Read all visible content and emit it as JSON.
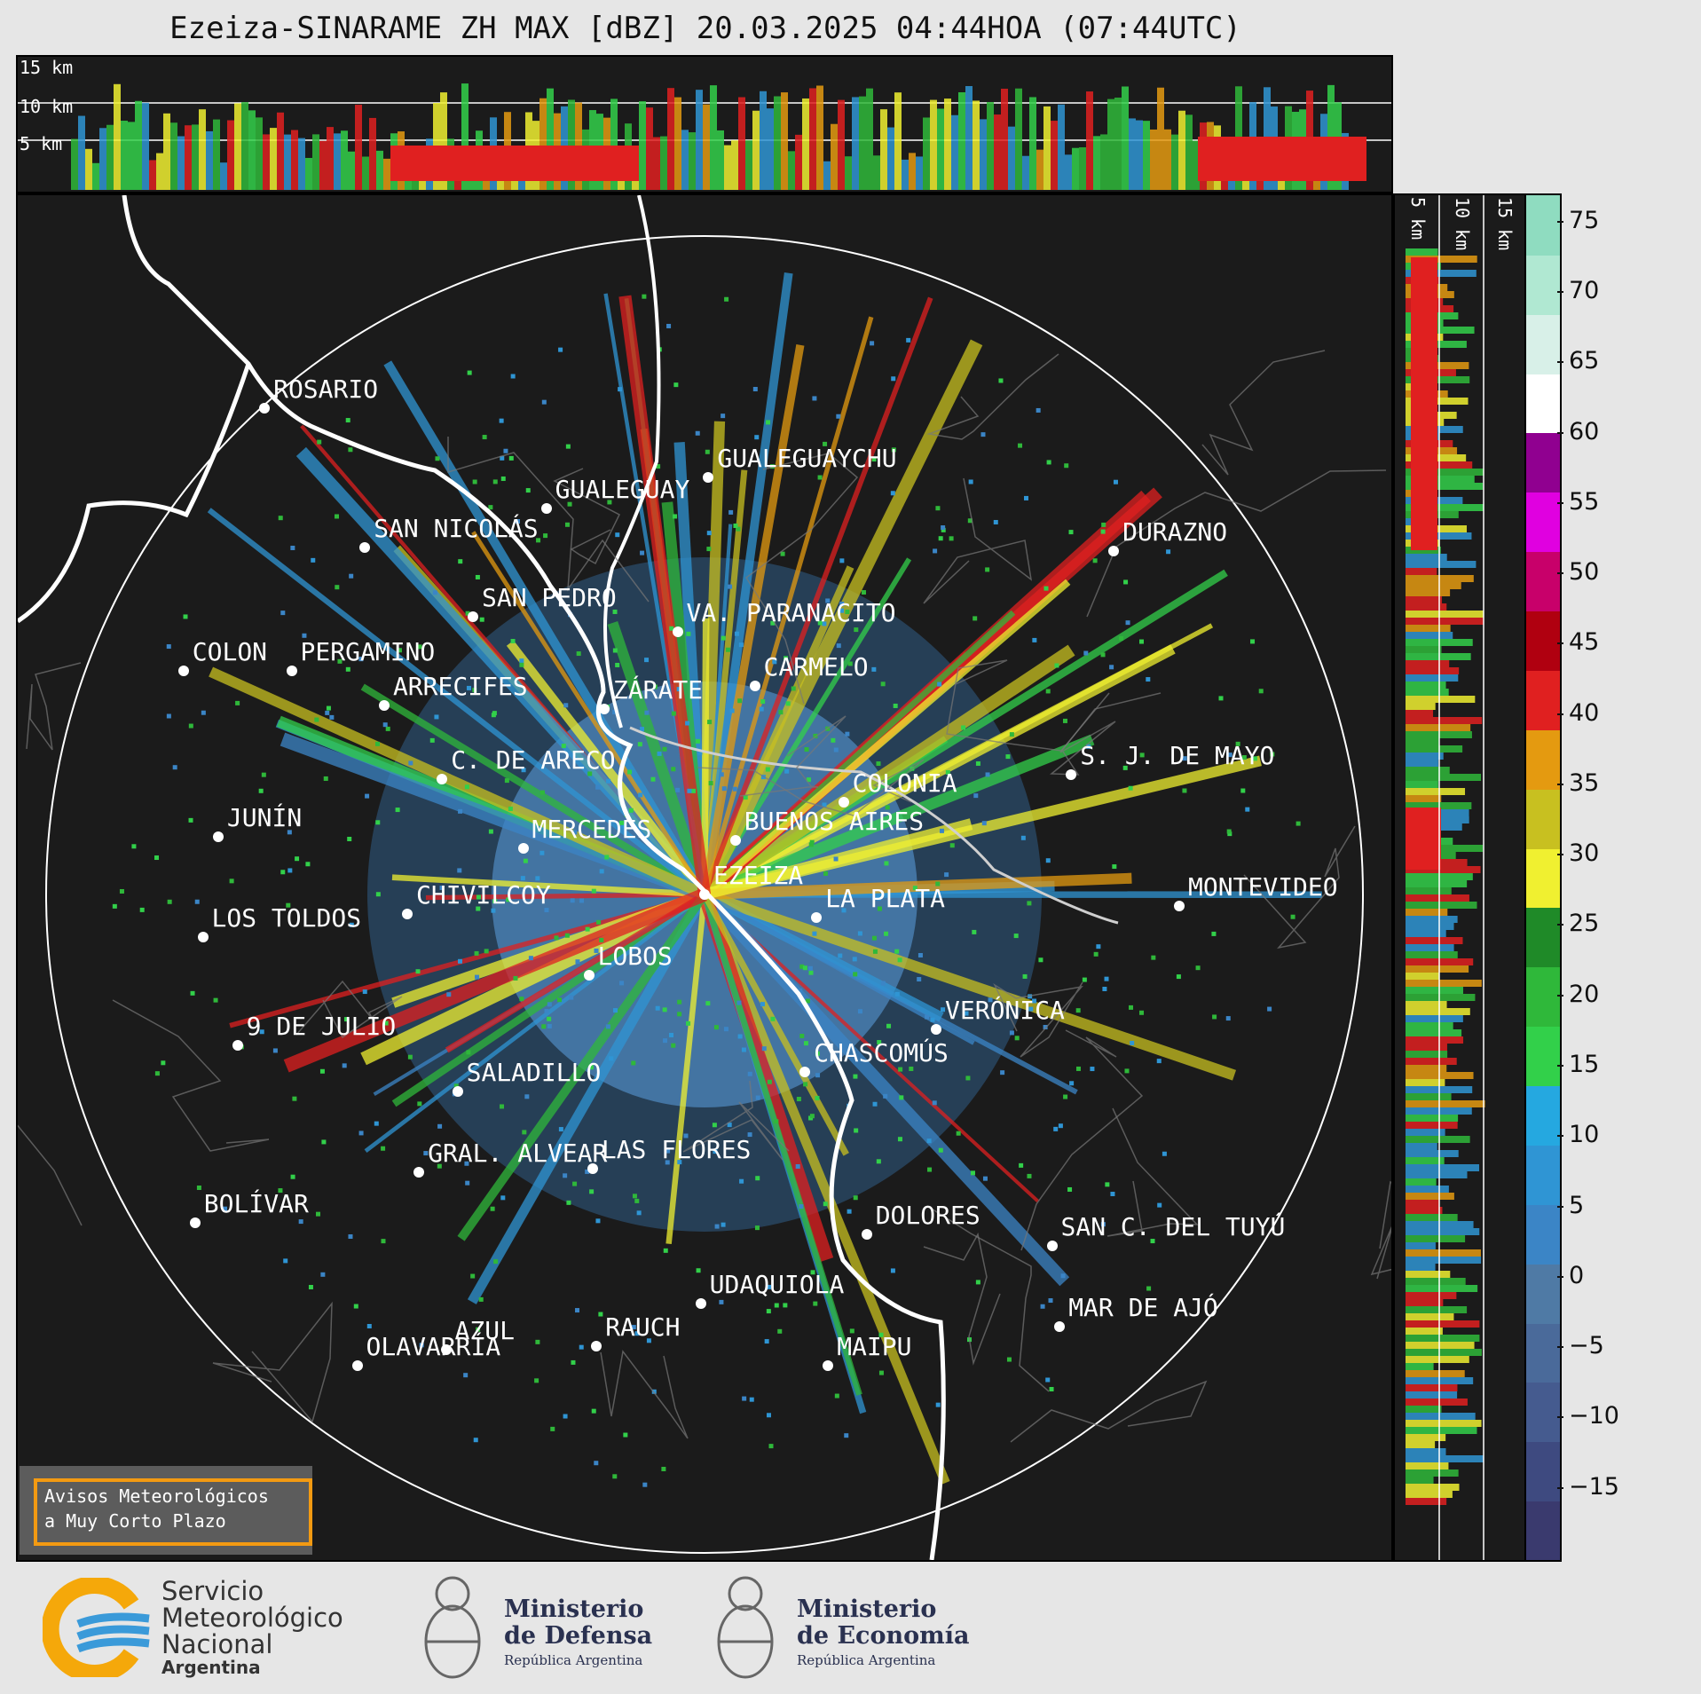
{
  "title": "Ezeiza-SINARAME ZH MAX [dBZ] 20.03.2025 04:44HOA (07:44UTC)",
  "top_panel": {
    "heights": [
      "15 km",
      "10 km",
      "5 km"
    ]
  },
  "side_panel": {
    "heights": [
      "5 km",
      "10 km",
      "15 km"
    ]
  },
  "cities": [
    {
      "name": "ROSARIO",
      "x": -5.7,
      "y": -6.3,
      "label": "right"
    },
    {
      "name": "GUALEGUAYCHU",
      "x": 0.05,
      "y": -5.4,
      "label": "right"
    },
    {
      "name": "GUALEGUAY",
      "x": -2.05,
      "y": -5.0,
      "label": "right"
    },
    {
      "name": "SAN NICOLÁS",
      "x": -4.4,
      "y": -4.5,
      "label": "right"
    },
    {
      "name": "DURAZNO",
      "x": 5.3,
      "y": -4.45,
      "label": "right"
    },
    {
      "name": "SAN PEDRO",
      "x": -3.0,
      "y": -3.6,
      "label": "right"
    },
    {
      "name": "VA. PARANACITO",
      "x": -0.35,
      "y": -3.4,
      "label": "right"
    },
    {
      "name": "COLON",
      "x": -6.75,
      "y": -2.9,
      "label": "right"
    },
    {
      "name": "PERGAMINO",
      "x": -5.35,
      "y": -2.9,
      "label": "right"
    },
    {
      "name": "CARMELO",
      "x": 0.65,
      "y": -2.7,
      "label": "right"
    },
    {
      "name": "ARRECIFES",
      "x": -4.15,
      "y": -2.45,
      "label": "right"
    },
    {
      "name": "ZÁRATE",
      "x": -1.3,
      "y": -2.4,
      "label": "right"
    },
    {
      "name": "S. J. DE MAYO",
      "x": 4.75,
      "y": -1.55,
      "label": "right"
    },
    {
      "name": "C. DE ARECO",
      "x": -3.4,
      "y": -1.5,
      "label": "right"
    },
    {
      "name": "COLONIA",
      "x": 1.8,
      "y": -1.2,
      "label": "right"
    },
    {
      "name": "JUNÍN",
      "x": -6.3,
      "y": -0.75,
      "label": "right"
    },
    {
      "name": "BUENOS AIRES",
      "x": 0.4,
      "y": -0.7,
      "label": "right"
    },
    {
      "name": "MERCEDES",
      "x": -2.35,
      "y": -0.6,
      "label": "right"
    },
    {
      "name": "EZEIZA",
      "x": 0.0,
      "y": 0.0,
      "label": "right"
    },
    {
      "name": "MONTEVIDEO",
      "x": 6.15,
      "y": 0.15,
      "label": "right"
    },
    {
      "name": "LA PLATA",
      "x": 1.45,
      "y": 0.3,
      "label": "right"
    },
    {
      "name": "CHIVILCOY",
      "x": -3.85,
      "y": 0.25,
      "label": "right"
    },
    {
      "name": "LOS TOLDOS",
      "x": -6.5,
      "y": 0.55,
      "label": "right"
    },
    {
      "name": "LOBOS",
      "x": -1.5,
      "y": 1.05,
      "label": "right"
    },
    {
      "name": "VERÓNICA",
      "x": 3.0,
      "y": 1.75,
      "label": "right"
    },
    {
      "name": "9 DE JULIO",
      "x": -6.05,
      "y": 1.95,
      "label": "right"
    },
    {
      "name": "CHASCOMÚS",
      "x": 1.3,
      "y": 2.3,
      "label": "right"
    },
    {
      "name": "SALADILLO",
      "x": -3.2,
      "y": 2.55,
      "label": "right"
    },
    {
      "name": "GRAL. ALVEAR",
      "x": -3.7,
      "y": 3.6,
      "label": "right"
    },
    {
      "name": "LAS FLORES",
      "x": -1.45,
      "y": 3.55,
      "label": "right"
    },
    {
      "name": "BOLÍVAR",
      "x": -6.6,
      "y": 4.25,
      "label": "right"
    },
    {
      "name": "DOLORES",
      "x": 2.1,
      "y": 4.4,
      "label": "right"
    },
    {
      "name": "SAN C. DEL TUYÚ",
      "x": 4.5,
      "y": 4.55,
      "label": "right"
    },
    {
      "name": "UDAQUIOLA",
      "x": -0.05,
      "y": 5.3,
      "label": "right"
    },
    {
      "name": "MAR DE AJÓ",
      "x": 4.6,
      "y": 5.6,
      "label": "right"
    },
    {
      "name": "AZUL",
      "x": -3.35,
      "y": 5.9,
      "label": "right"
    },
    {
      "name": "RAUCH",
      "x": -1.4,
      "y": 5.85,
      "label": "right"
    },
    {
      "name": "OLAVARRÍA",
      "x": -4.5,
      "y": 6.1,
      "label": "right"
    },
    {
      "name": "MAIPU",
      "x": 1.6,
      "y": 6.1,
      "label": "right"
    }
  ],
  "colorbar": {
    "ticks": [
      "75",
      "70",
      "65",
      "60",
      "55",
      "50",
      "45",
      "40",
      "35",
      "30",
      "25",
      "20",
      "15",
      "10",
      "5",
      "0",
      "−5",
      "−10",
      "−15"
    ],
    "colors": [
      "#3a3a6e",
      "#3e4a80",
      "#455b8f",
      "#4a6a9a",
      "#4f7aa5",
      "#3b85c6",
      "#2f95d4",
      "#25a8e0",
      "#32d04a",
      "#2fb83a",
      "#1f8a28",
      "#f0f030",
      "#c8c020",
      "#e49a10",
      "#e02020",
      "#b00010",
      "#c8006a",
      "#e000e0",
      "#900090",
      "#ffffff",
      "#d8f0e8",
      "#b0e8d2",
      "#8fdcc0"
    ],
    "range": [
      -20,
      77
    ]
  },
  "warning_box": {
    "line1": "Avisos Meteorológicos",
    "line2": "a Muy Corto Plazo"
  },
  "logos": {
    "smn": {
      "line1": "Servicio",
      "line2": "Meteorológico",
      "line3": "Nacional",
      "line4": "Argentina"
    },
    "defensa": {
      "line1": "Ministerio",
      "line2": "de Defensa",
      "line3": "República Argentina"
    },
    "economia": {
      "line1": "Ministerio",
      "line2": "de Economía",
      "line3": "República Argentina"
    }
  }
}
